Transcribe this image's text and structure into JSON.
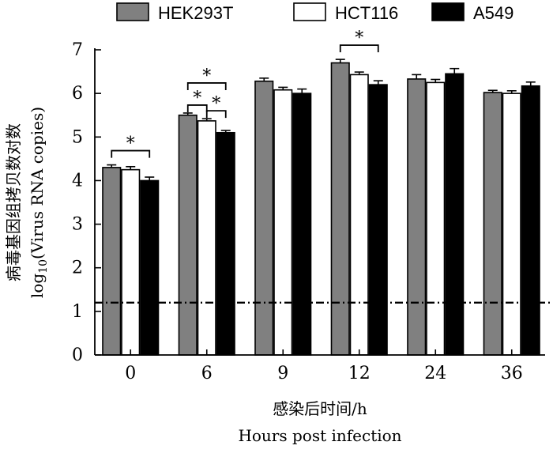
{
  "chart_data": {
    "type": "bar",
    "categories": [
      "0",
      "6",
      "9",
      "12",
      "24",
      "36"
    ],
    "series": [
      {
        "name": "HEK293T",
        "values": [
          4.3,
          5.5,
          6.28,
          6.7,
          6.33,
          6.02
        ],
        "errors": [
          0.06,
          0.05,
          0.07,
          0.08,
          0.1,
          0.05
        ],
        "color": "#808080"
      },
      {
        "name": "HCT116",
        "values": [
          4.25,
          5.37,
          6.08,
          6.43,
          6.25,
          6.0
        ],
        "errors": [
          0.07,
          0.05,
          0.06,
          0.06,
          0.07,
          0.06
        ],
        "color": "#ffffff"
      },
      {
        "name": "A549",
        "values": [
          4.0,
          5.1,
          6.0,
          6.2,
          6.45,
          6.17
        ],
        "errors": [
          0.08,
          0.05,
          0.1,
          0.09,
          0.12,
          0.09
        ],
        "color": "#000000"
      }
    ],
    "ylim": [
      0,
      7
    ],
    "yticks": [
      0,
      1,
      2,
      3,
      4,
      5,
      6,
      7
    ],
    "ylabel": "log10(Virus RNA copies)",
    "ylabel_cn": "病毒基因组拷贝数对数",
    "xlabel_cn": "感染后时间/h",
    "xlabel": "Hours post infection",
    "reference_line": {
      "value": 1.2,
      "style": "dash-dot"
    },
    "significance": [
      {
        "category": 0,
        "from": 0,
        "to": 2,
        "label": "*"
      },
      {
        "category": 1,
        "from": 0,
        "to": 1,
        "label": "*"
      },
      {
        "category": 1,
        "from": 1,
        "to": 2,
        "label": "*"
      },
      {
        "category": 1,
        "from": 0,
        "to": 2,
        "label": "*"
      },
      {
        "category": 3,
        "from": 0,
        "to": 2,
        "label": "*"
      }
    ],
    "legend_position": "top",
    "grid": false
  }
}
